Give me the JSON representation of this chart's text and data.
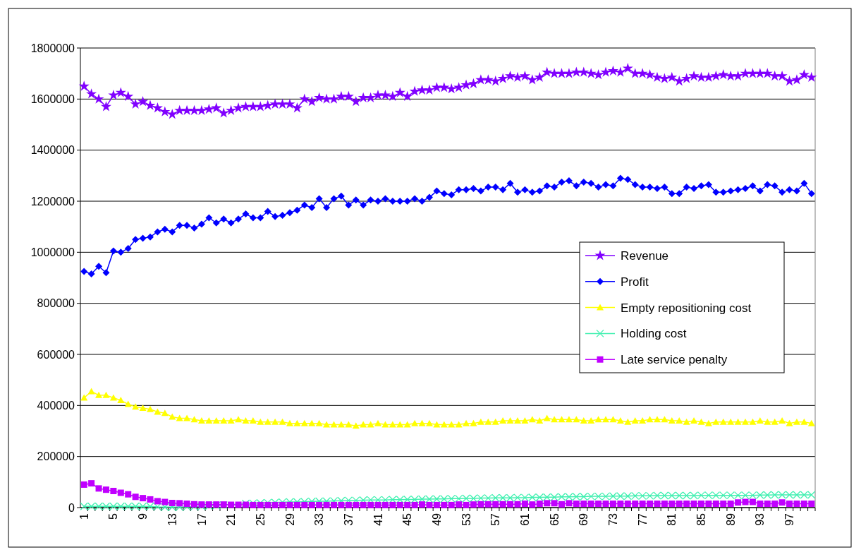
{
  "chart_data": {
    "type": "line",
    "categories": [
      "1",
      null,
      null,
      null,
      "5",
      null,
      null,
      null,
      "9",
      null,
      null,
      null,
      "13",
      null,
      null,
      null,
      "17",
      null,
      null,
      null,
      "21",
      null,
      null,
      null,
      "25",
      null,
      null,
      null,
      "29",
      null,
      null,
      null,
      "33",
      null,
      null,
      null,
      "37",
      null,
      null,
      null,
      "41",
      null,
      null,
      null,
      "45",
      null,
      null,
      null,
      "49",
      null,
      null,
      null,
      "53",
      null,
      null,
      null,
      "57",
      null,
      null,
      null,
      "61",
      null,
      null,
      null,
      "65",
      null,
      null,
      null,
      "69",
      null,
      null,
      null,
      "73",
      null,
      null,
      null,
      "77",
      null,
      null,
      null,
      "81",
      null,
      null,
      null,
      "85",
      null,
      null,
      null,
      "89",
      null,
      null,
      null,
      "93",
      null,
      null,
      null,
      "97",
      null,
      null,
      null
    ],
    "ylim": [
      0,
      1800000
    ],
    "yticks": [
      0,
      200000,
      400000,
      600000,
      800000,
      1000000,
      1200000,
      1400000,
      1600000,
      1800000
    ],
    "grid": "y",
    "legend": "right",
    "series": [
      {
        "name": "Revenue",
        "color": "#8000ff",
        "marker": "star",
        "values": [
          1650000,
          1620000,
          1600000,
          1570000,
          1615000,
          1625000,
          1610000,
          1580000,
          1590000,
          1575000,
          1565000,
          1550000,
          1540000,
          1555000,
          1555000,
          1555000,
          1555000,
          1560000,
          1565000,
          1545000,
          1555000,
          1565000,
          1570000,
          1570000,
          1570000,
          1575000,
          1580000,
          1580000,
          1580000,
          1565000,
          1600000,
          1590000,
          1605000,
          1600000,
          1600000,
          1610000,
          1610000,
          1590000,
          1605000,
          1605000,
          1615000,
          1615000,
          1610000,
          1625000,
          1610000,
          1630000,
          1635000,
          1635000,
          1645000,
          1645000,
          1640000,
          1645000,
          1655000,
          1660000,
          1675000,
          1675000,
          1670000,
          1680000,
          1690000,
          1685000,
          1690000,
          1675000,
          1685000,
          1705000,
          1700000,
          1700000,
          1700000,
          1705000,
          1705000,
          1700000,
          1695000,
          1705000,
          1710000,
          1705000,
          1720000,
          1700000,
          1700000,
          1695000,
          1685000,
          1680000,
          1685000,
          1670000,
          1680000,
          1690000,
          1685000,
          1685000,
          1690000,
          1695000,
          1690000,
          1690000,
          1700000,
          1700000,
          1700000,
          1700000,
          1690000,
          1690000,
          1670000,
          1675000,
          1695000,
          1685000
        ]
      },
      {
        "name": "Profit",
        "color": "#0000ff",
        "marker": "diamond",
        "values": [
          925000,
          915000,
          945000,
          920000,
          1005000,
          1000000,
          1015000,
          1050000,
          1055000,
          1060000,
          1080000,
          1090000,
          1080000,
          1105000,
          1105000,
          1095000,
          1110000,
          1135000,
          1115000,
          1130000,
          1115000,
          1130000,
          1150000,
          1135000,
          1135000,
          1160000,
          1140000,
          1145000,
          1155000,
          1165000,
          1185000,
          1175000,
          1210000,
          1175000,
          1210000,
          1220000,
          1185000,
          1205000,
          1185000,
          1205000,
          1200000,
          1210000,
          1200000,
          1200000,
          1200000,
          1210000,
          1200000,
          1215000,
          1240000,
          1230000,
          1225000,
          1245000,
          1245000,
          1250000,
          1240000,
          1255000,
          1255000,
          1245000,
          1270000,
          1235000,
          1245000,
          1235000,
          1240000,
          1260000,
          1255000,
          1275000,
          1280000,
          1260000,
          1275000,
          1270000,
          1255000,
          1265000,
          1260000,
          1290000,
          1285000,
          1265000,
          1255000,
          1255000,
          1250000,
          1255000,
          1230000,
          1230000,
          1255000,
          1250000,
          1260000,
          1265000,
          1235000,
          1235000,
          1240000,
          1245000,
          1250000,
          1260000,
          1240000,
          1265000,
          1260000,
          1235000,
          1245000,
          1240000,
          1270000,
          1230000
        ]
      },
      {
        "name": "Empty repositioning cost",
        "color": "#ffff00",
        "marker": "triangle",
        "values": [
          430000,
          455000,
          440000,
          440000,
          430000,
          420000,
          405000,
          395000,
          390000,
          385000,
          375000,
          370000,
          355000,
          350000,
          350000,
          345000,
          340000,
          340000,
          340000,
          340000,
          340000,
          345000,
          340000,
          340000,
          335000,
          335000,
          335000,
          335000,
          330000,
          330000,
          330000,
          330000,
          330000,
          325000,
          325000,
          325000,
          325000,
          320000,
          325000,
          325000,
          330000,
          325000,
          325000,
          325000,
          325000,
          330000,
          330000,
          330000,
          325000,
          325000,
          325000,
          325000,
          330000,
          330000,
          335000,
          335000,
          335000,
          340000,
          340000,
          340000,
          340000,
          345000,
          340000,
          350000,
          345000,
          345000,
          345000,
          345000,
          340000,
          340000,
          345000,
          345000,
          345000,
          340000,
          335000,
          340000,
          340000,
          345000,
          345000,
          345000,
          340000,
          340000,
          335000,
          340000,
          335000,
          330000,
          335000,
          335000,
          335000,
          335000,
          335000,
          335000,
          340000,
          335000,
          335000,
          340000,
          330000,
          335000,
          335000,
          330000
        ]
      },
      {
        "name": "Holding cost",
        "color": "#40f0b0",
        "marker": "cross",
        "values": [
          5000,
          5000,
          5000,
          5000,
          5000,
          5000,
          5000,
          5000,
          5000,
          5000,
          3000,
          2000,
          2000,
          2000,
          3000,
          4000,
          5000,
          6000,
          8000,
          10000,
          null,
          null,
          16000,
          17000,
          18000,
          19000,
          20000,
          21000,
          22000,
          22000,
          23000,
          24000,
          25000,
          25000,
          26000,
          27000,
          28000,
          28000,
          29000,
          30000,
          30000,
          30000,
          31000,
          31000,
          32000,
          32000,
          33000,
          33000,
          34000,
          34000,
          35000,
          35000,
          36000,
          36000,
          37000,
          37000,
          38000,
          38000,
          38000,
          39000,
          39000,
          40000,
          40000,
          41000,
          41000,
          42000,
          42000,
          43000,
          43000,
          44000,
          44000,
          44000,
          45000,
          45000,
          45000,
          46000,
          46000,
          46000,
          47000,
          47000,
          47000,
          47000,
          47000,
          47000,
          48000,
          48000,
          48000,
          48000,
          48000,
          48000,
          48000,
          48000,
          49000,
          49000,
          50000,
          50000,
          50000,
          50000,
          50000,
          50000
        ]
      },
      {
        "name": "Late service penalty",
        "color": "#c000ff",
        "marker": "square",
        "values": [
          90000,
          95000,
          75000,
          70000,
          65000,
          58000,
          52000,
          42000,
          37000,
          32000,
          25000,
          22000,
          18000,
          17000,
          15000,
          13000,
          12000,
          12000,
          12000,
          12000,
          11000,
          11000,
          11000,
          10000,
          10000,
          10000,
          10000,
          10000,
          10000,
          10000,
          10000,
          10000,
          10000,
          10000,
          10000,
          10000,
          10000,
          10000,
          10000,
          10000,
          10000,
          10000,
          10000,
          10000,
          10000,
          10000,
          12000,
          10000,
          10000,
          10000,
          10000,
          12000,
          10000,
          12000,
          13000,
          13000,
          13000,
          13000,
          13000,
          13000,
          15000,
          12000,
          15000,
          17000,
          17000,
          13000,
          17000,
          15000,
          15000,
          15000,
          15000,
          15000,
          15000,
          15000,
          15000,
          15000,
          15000,
          15000,
          15000,
          15000,
          15000,
          15000,
          15000,
          15000,
          15000,
          15000,
          15000,
          15000,
          15000,
          20000,
          22000,
          22000,
          15000,
          15000,
          15000,
          20000,
          15000,
          15000,
          15000,
          15000
        ]
      }
    ]
  }
}
